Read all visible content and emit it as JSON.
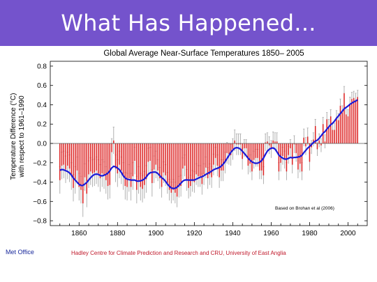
{
  "slide": {
    "title": "What Has Happened...",
    "title_bar_color": "#7453cc",
    "footer_left": "Met Office",
    "footer_right": "Hadley Centre for Climate Prediction and Research and CRU, University of East Anglia"
  },
  "chart_data": {
    "type": "bar",
    "title": "Global Average Near-Surface Temperatures 1850– 2005",
    "xlabel": "",
    "ylabel_line1": "Temperature Difference (°C)",
    "ylabel_line2": "with respect to 1961–1990",
    "annotation": "Based on Brohan et al (2006)",
    "xlim": [
      1845,
      2010
    ],
    "ylim": [
      -0.85,
      0.85
    ],
    "x_ticks": [
      1860,
      1880,
      1900,
      1920,
      1940,
      1960,
      1980,
      2000
    ],
    "y_ticks": [
      -0.8,
      -0.6,
      -0.4,
      -0.2,
      0.0,
      0.2,
      0.4,
      0.6,
      0.8
    ],
    "y_tick_labels": [
      "−0.8",
      "−0.6",
      "−0.4",
      "−0.2",
      "0.0",
      "0.2",
      "0.4",
      "0.6",
      "0.8"
    ],
    "grid": false,
    "colors": {
      "bars": "#dd2222",
      "smooth_line": "#1a1ad8",
      "error_bars": "#a8a8a8",
      "zero_line": "#555555"
    },
    "series": [
      {
        "type": "bar",
        "start_year": 1850,
        "values": [
          -0.38,
          -0.23,
          -0.22,
          -0.27,
          -0.23,
          -0.26,
          -0.34,
          -0.46,
          -0.38,
          -0.28,
          -0.45,
          -0.48,
          -0.62,
          -0.35,
          -0.52,
          -0.32,
          -0.29,
          -0.31,
          -0.3,
          -0.28,
          -0.31,
          -0.36,
          -0.31,
          -0.33,
          -0.38,
          -0.44,
          -0.43,
          -0.09,
          0.03,
          -0.26,
          -0.31,
          -0.22,
          -0.28,
          -0.34,
          -0.44,
          -0.45,
          -0.36,
          -0.45,
          -0.34,
          -0.18,
          -0.48,
          -0.38,
          -0.45,
          -0.47,
          -0.43,
          -0.37,
          -0.19,
          -0.18,
          -0.41,
          -0.27,
          -0.22,
          -0.28,
          -0.36,
          -0.45,
          -0.3,
          -0.33,
          -0.41,
          -0.48,
          -0.51,
          -0.48,
          -0.51,
          -0.55,
          -0.45,
          -0.44,
          -0.26,
          -0.23,
          -0.38,
          -0.46,
          -0.44,
          -0.39,
          -0.4,
          -0.32,
          -0.34,
          -0.34,
          -0.42,
          -0.32,
          -0.25,
          -0.36,
          -0.32,
          -0.35,
          -0.22,
          -0.15,
          -0.23,
          -0.35,
          -0.28,
          -0.28,
          -0.2,
          -0.1,
          -0.11,
          -0.12,
          -0.06,
          0.03,
          -0.01,
          -0.01,
          -0.01,
          -0.16,
          -0.05,
          -0.05,
          -0.23,
          -0.21,
          -0.29,
          -0.17,
          -0.15,
          -0.15,
          -0.28,
          -0.28,
          -0.33,
          0.01,
          0.02,
          -0.02,
          -0.06,
          0.03,
          0.02,
          0.02,
          -0.29,
          -0.2,
          -0.13,
          -0.17,
          -0.29,
          -0.12,
          -0.05,
          -0.22,
          -0.01,
          -0.1,
          -0.27,
          -0.21,
          -0.29,
          0.06,
          -0.03,
          0.07,
          -0.19,
          -0.04,
          0.04,
          0.18,
          -0.06,
          0.03,
          -0.02,
          0.2,
          0.02,
          0.25,
          0.18,
          0.28,
          0.14,
          0.14,
          0.27,
          0.24,
          0.39,
          0.32,
          0.52,
          0.3,
          0.28,
          0.41,
          0.46,
          0.47,
          0.45,
          0.48
        ]
      },
      {
        "type": "smoothed_line",
        "start_year": 1850,
        "description_values": "smoothed series derived from bar values (moving average)",
        "window": 10
      },
      {
        "type": "error_bars",
        "half_width_by_period": [
          {
            "from": 1850,
            "to": 1900,
            "half_width": 0.14
          },
          {
            "from": 1901,
            "to": 1945,
            "half_width": 0.11
          },
          {
            "from": 1946,
            "to": 1980,
            "half_width": 0.09
          },
          {
            "from": 1981,
            "to": 2005,
            "half_width": 0.07
          }
        ]
      }
    ]
  }
}
